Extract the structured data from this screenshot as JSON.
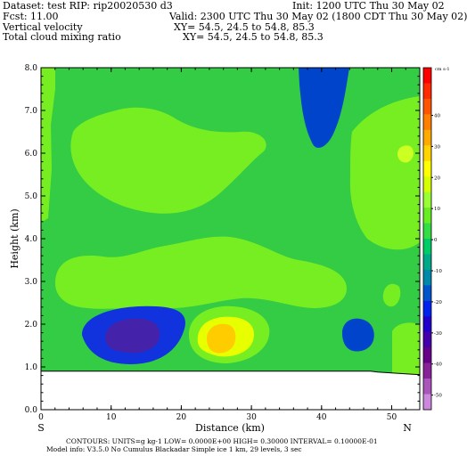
{
  "header": {
    "line1_left": "Dataset: test   RIP: rip20020530  d3",
    "line1_right": "Init: 1200 UTC Thu 30 May 02",
    "line2_left": "Fcst:     11.00",
    "line2_right": "Valid: 2300 UTC Thu 30 May 02 (1800 CDT Thu 30 May 02)",
    "line3_left": "Vertical velocity",
    "line3_right": "XY=  54.5, 24.5 to   54.8, 85.3",
    "line4_left": "Total cloud mixing ratio",
    "line4_right": "XY=  54.5, 24.5 to  54.8, 85.3"
  },
  "footer": {
    "line1": "CONTOURS:  UNITS=g kg-1   LOW= 0.0000E+00  HIGH= 0.30000       INTERVAL=  0.10000E-01",
    "line2": "Model info: V3.5.0 No Cumulus Blackadar  Simple ice      1 km,   29 levels,      3 sec"
  },
  "chart_data": {
    "type": "heatmap",
    "xlabel": "Distance (km)",
    "ylabel": "Height (km)",
    "xlim": [
      0,
      54
    ],
    "ylim": [
      0,
      8
    ],
    "x_ticks": [
      0,
      10,
      20,
      30,
      40,
      50
    ],
    "y_ticks": [
      0.0,
      1.0,
      2.0,
      3.0,
      4.0,
      5.0,
      6.0,
      7.0,
      8.0
    ],
    "x_end_labels": [
      "S",
      "N"
    ],
    "colorbar": {
      "unit_label": "cm s-1",
      "tick_labels": [
        "40",
        "30",
        "20",
        "10",
        "0",
        "-10",
        "-20",
        "-30",
        "-40",
        "-50"
      ],
      "colors": [
        "#ff0000",
        "#ff2a00",
        "#ff5500",
        "#ff7f00",
        "#ffaa00",
        "#ffd400",
        "#ffff00",
        "#d4ff00",
        "#99ff33",
        "#66ee22",
        "#33dd44",
        "#00cc66",
        "#00aa88",
        "#0088aa",
        "#0055cc",
        "#0022ee",
        "#2200cc",
        "#4400aa",
        "#660088",
        "#882299",
        "#aa55bb",
        "#cc88dd"
      ]
    },
    "terrain_height_km": [
      0.9,
      0.9,
      0.9,
      0.9,
      0.9,
      0.9,
      0.9,
      0.9,
      0.9,
      0.9,
      0.9,
      0.9,
      0.9,
      0.9,
      0.9,
      0.9,
      0.9,
      0.9,
      0.9,
      0.9,
      0.9,
      0.9,
      0.9,
      0.9,
      0.9,
      0.9,
      0.9,
      0.9,
      0.9,
      0.9,
      0.9,
      0.9,
      0.9,
      0.9,
      0.9,
      0.9,
      0.9,
      0.9,
      0.9,
      0.9,
      0.9,
      0.9,
      0.9,
      0.9,
      0.9,
      0.9,
      0.9,
      0.9,
      0.88,
      0.87,
      0.86,
      0.85,
      0.84,
      0.83,
      0.82
    ]
  }
}
